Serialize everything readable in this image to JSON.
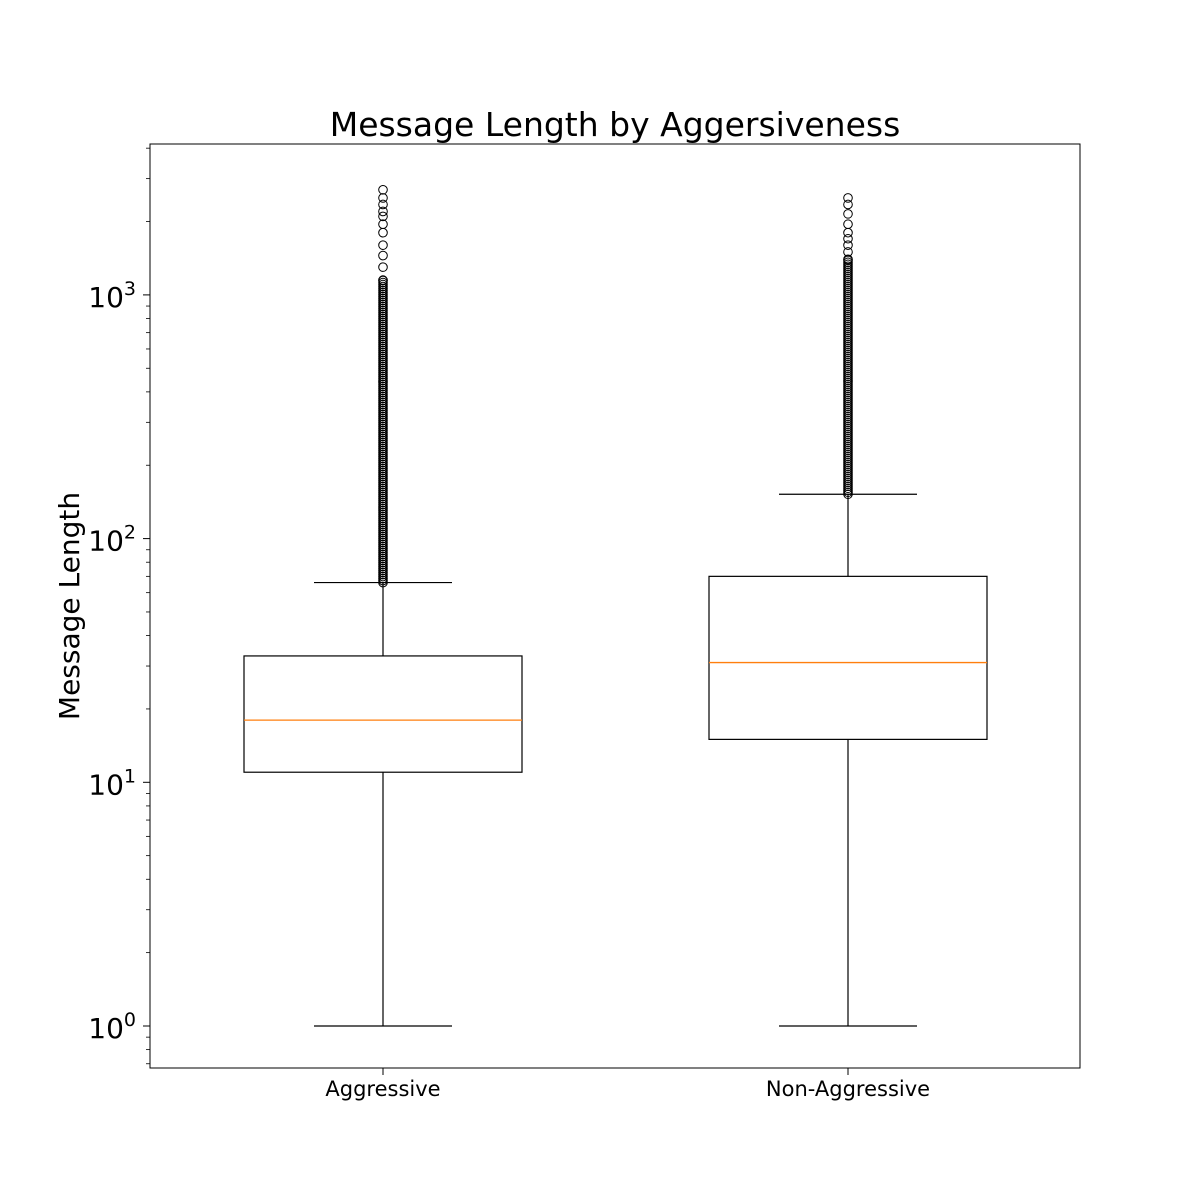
{
  "chart_data": {
    "type": "box",
    "title": "Message Length by Aggersiveness",
    "ylabel": "Message Length",
    "xlabel": "",
    "yscale": "log",
    "ylim": [
      0.68,
      4200
    ],
    "yticks": [
      {
        "value": 1,
        "base": "10",
        "exp": "0"
      },
      {
        "value": 10,
        "base": "10",
        "exp": "1"
      },
      {
        "value": 100,
        "base": "10",
        "exp": "2"
      },
      {
        "value": 1000,
        "base": "10",
        "exp": "3"
      }
    ],
    "categories": [
      "Aggressive",
      "Non-Aggressive"
    ],
    "boxes": [
      {
        "name": "Aggressive",
        "whisker_low": 1,
        "q1": 11,
        "median": 18,
        "q3": 33,
        "whisker_high": 66,
        "outlier_min": 66,
        "outlier_max": 2800,
        "sparse_outliers": [
          2700,
          2500,
          2350,
          2200,
          2100,
          1950,
          1800,
          1600,
          1450,
          1300,
          1150
        ]
      },
      {
        "name": "Non-Aggressive",
        "whisker_low": 1,
        "q1": 15,
        "median": 31,
        "q3": 70,
        "whisker_high": 152,
        "outlier_min": 152,
        "outlier_max": 2500,
        "sparse_outliers": [
          2500,
          2350,
          2150,
          1950,
          1800,
          1700,
          1600,
          1500,
          1400
        ]
      }
    ],
    "colors": {
      "box": "#000000",
      "median": "#ff7f0e",
      "outlier": "#000000"
    },
    "grid": false,
    "legend": "none"
  }
}
